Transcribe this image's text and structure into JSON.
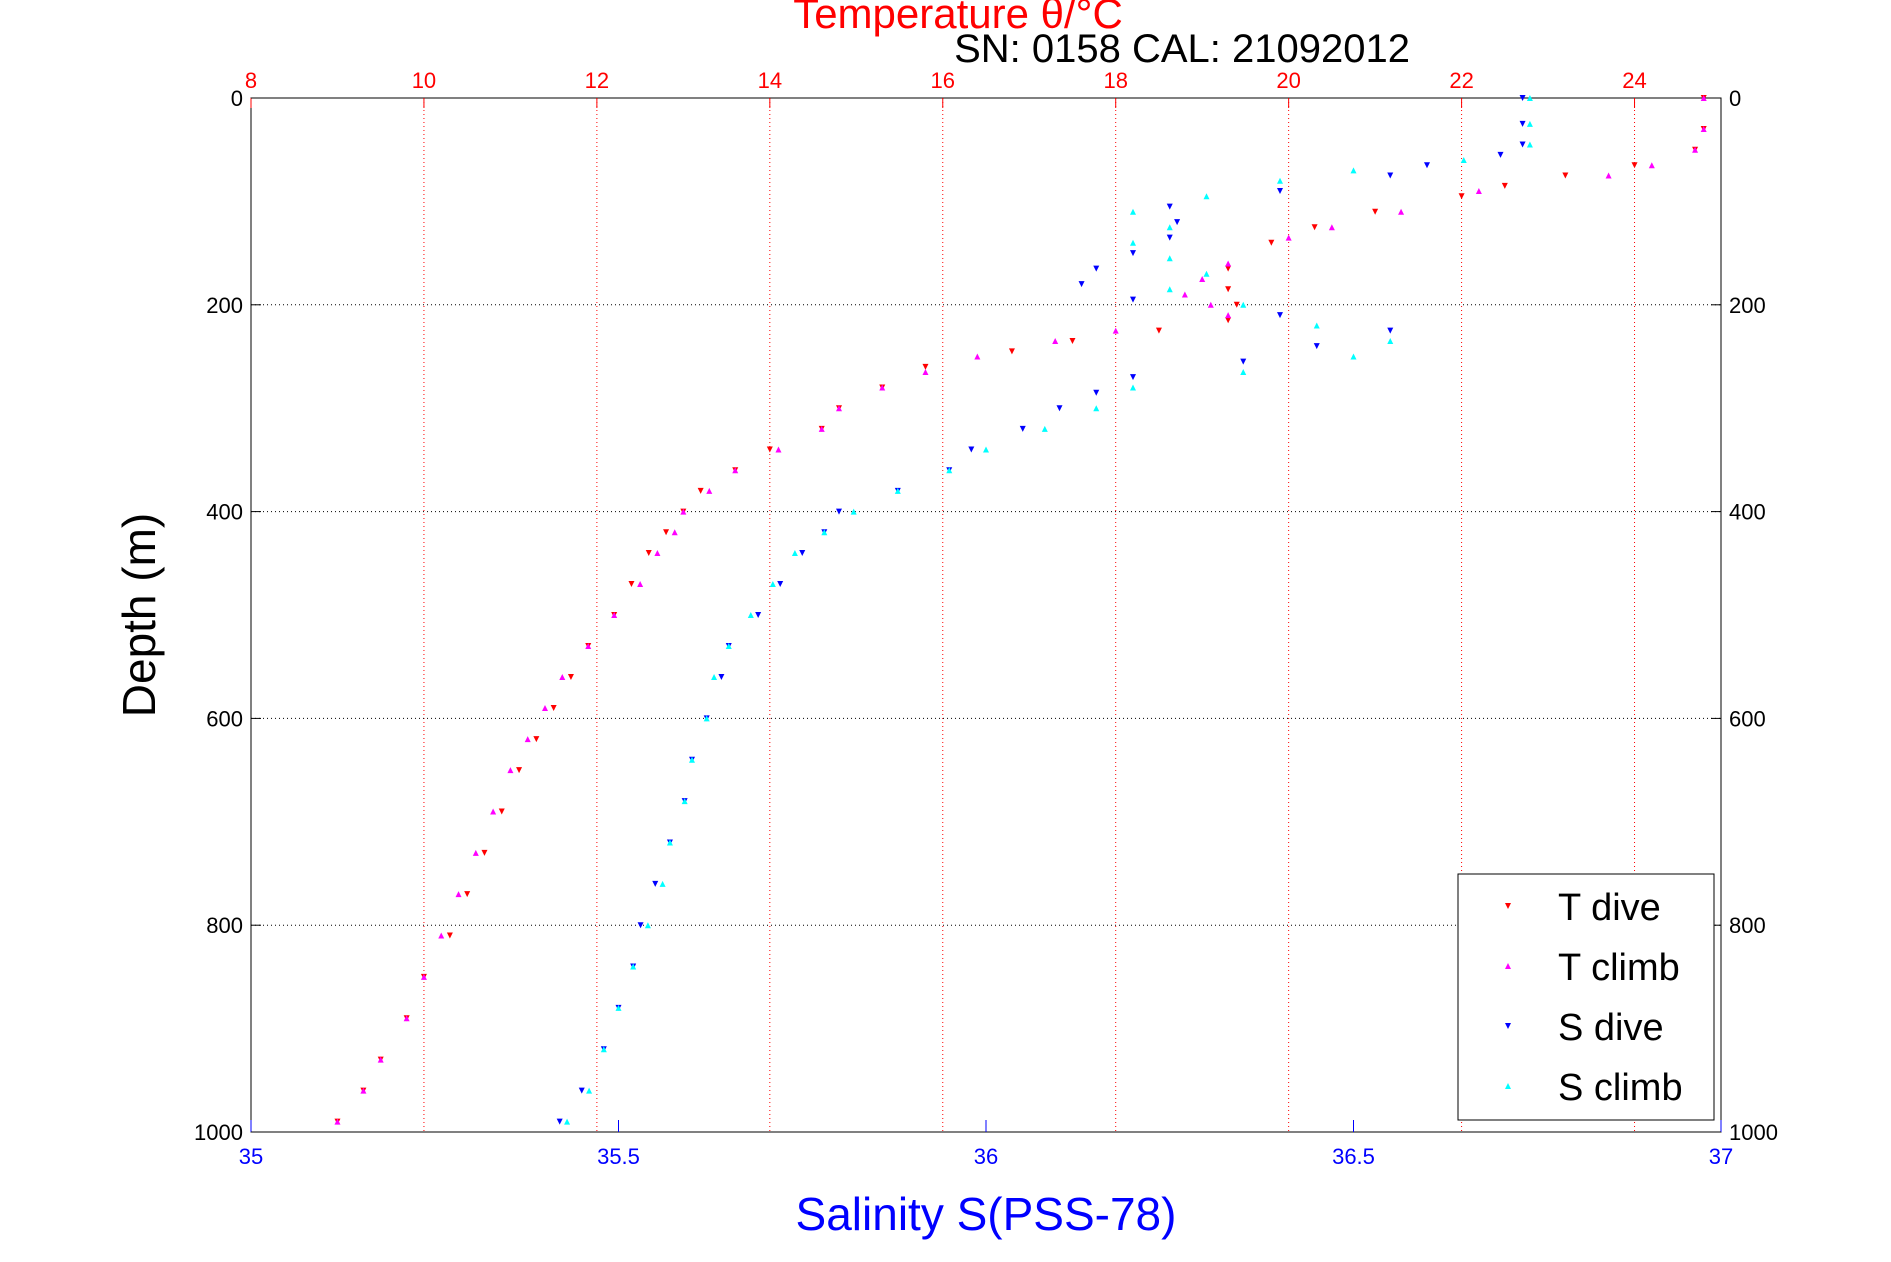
{
  "chart_data": {
    "type": "scatter",
    "title": "Temperature θ/°C",
    "subtitle": "SN: 0158  CAL: 21092012",
    "top_axis": {
      "label": "Temperature θ/°C",
      "range": [
        8,
        25
      ],
      "ticks": [
        "8",
        "10",
        "12",
        "14",
        "16",
        "18",
        "20",
        "22",
        "24"
      ],
      "color": "#ff0000"
    },
    "bottom_axis": {
      "label": "Salinity S(PSS-78)",
      "range": [
        35,
        37
      ],
      "ticks": [
        "35",
        "35.5",
        "36",
        "36.5",
        "37"
      ],
      "color": "#0000ff"
    },
    "y_axis": {
      "label": "Depth (m)",
      "range": [
        0,
        1000
      ],
      "reversed": true,
      "ticks": [
        "0",
        "200",
        "400",
        "600",
        "800",
        "1000"
      ]
    },
    "grid": true,
    "legend": {
      "placement": "bottom-right",
      "entries": [
        "T dive",
        "T climb",
        "S dive",
        "S climb"
      ]
    },
    "series": [
      {
        "name": "T dive",
        "axis": "temperature",
        "color": "#ff0000",
        "marker": "triangle-down",
        "points": [
          [
            24.8,
            0
          ],
          [
            24.8,
            30
          ],
          [
            24.7,
            50
          ],
          [
            24,
            65
          ],
          [
            23.2,
            75
          ],
          [
            22.5,
            85
          ],
          [
            22,
            95
          ],
          [
            21,
            110
          ],
          [
            20.3,
            125
          ],
          [
            19.8,
            140
          ],
          [
            19.3,
            165
          ],
          [
            19.3,
            185
          ],
          [
            19.4,
            200
          ],
          [
            19.3,
            215
          ],
          [
            18.5,
            225
          ],
          [
            17.5,
            235
          ],
          [
            16.8,
            245
          ],
          [
            15.8,
            260
          ],
          [
            15.3,
            280
          ],
          [
            14.8,
            300
          ],
          [
            14.6,
            320
          ],
          [
            14,
            340
          ],
          [
            13.6,
            360
          ],
          [
            13.2,
            380
          ],
          [
            13,
            400
          ],
          [
            12.8,
            420
          ],
          [
            12.6,
            440
          ],
          [
            12.4,
            470
          ],
          [
            12.2,
            500
          ],
          [
            11.9,
            530
          ],
          [
            11.7,
            560
          ],
          [
            11.5,
            590
          ],
          [
            11.3,
            620
          ],
          [
            11.1,
            650
          ],
          [
            10.9,
            690
          ],
          [
            10.7,
            730
          ],
          [
            10.5,
            770
          ],
          [
            10.3,
            810
          ],
          [
            10,
            850
          ],
          [
            9.8,
            890
          ],
          [
            9.5,
            930
          ],
          [
            9.3,
            960
          ],
          [
            9,
            990
          ]
        ]
      },
      {
        "name": "T climb",
        "axis": "temperature",
        "color": "#ff00ff",
        "marker": "triangle-up",
        "points": [
          [
            24.8,
            0
          ],
          [
            24.8,
            30
          ],
          [
            24.7,
            50
          ],
          [
            24.2,
            65
          ],
          [
            23.7,
            75
          ],
          [
            22.2,
            90
          ],
          [
            21.3,
            110
          ],
          [
            20.5,
            125
          ],
          [
            20,
            135
          ],
          [
            19.3,
            160
          ],
          [
            19,
            175
          ],
          [
            18.8,
            190
          ],
          [
            19.1,
            200
          ],
          [
            19.3,
            210
          ],
          [
            18,
            225
          ],
          [
            17.3,
            235
          ],
          [
            16.4,
            250
          ],
          [
            15.8,
            265
          ],
          [
            15.3,
            280
          ],
          [
            14.8,
            300
          ],
          [
            14.6,
            320
          ],
          [
            14.1,
            340
          ],
          [
            13.6,
            360
          ],
          [
            13.3,
            380
          ],
          [
            13,
            400
          ],
          [
            12.9,
            420
          ],
          [
            12.7,
            440
          ],
          [
            12.5,
            470
          ],
          [
            12.2,
            500
          ],
          [
            11.9,
            530
          ],
          [
            11.6,
            560
          ],
          [
            11.4,
            590
          ],
          [
            11.2,
            620
          ],
          [
            11,
            650
          ],
          [
            10.8,
            690
          ],
          [
            10.6,
            730
          ],
          [
            10.4,
            770
          ],
          [
            10.2,
            810
          ],
          [
            10,
            850
          ],
          [
            9.8,
            890
          ],
          [
            9.5,
            930
          ],
          [
            9.3,
            960
          ],
          [
            9,
            990
          ]
        ]
      },
      {
        "name": "S dive",
        "axis": "salinity",
        "color": "#0000ff",
        "marker": "triangle-down",
        "points": [
          [
            36.73,
            0
          ],
          [
            36.73,
            25
          ],
          [
            36.73,
            45
          ],
          [
            36.7,
            55
          ],
          [
            36.6,
            65
          ],
          [
            36.55,
            75
          ],
          [
            36.4,
            90
          ],
          [
            36.25,
            105
          ],
          [
            36.26,
            120
          ],
          [
            36.25,
            135
          ],
          [
            36.2,
            150
          ],
          [
            36.15,
            165
          ],
          [
            36.13,
            180
          ],
          [
            36.2,
            195
          ],
          [
            36.4,
            210
          ],
          [
            36.55,
            225
          ],
          [
            36.45,
            240
          ],
          [
            36.35,
            255
          ],
          [
            36.2,
            270
          ],
          [
            36.15,
            285
          ],
          [
            36.1,
            300
          ],
          [
            36.05,
            320
          ],
          [
            35.98,
            340
          ],
          [
            35.95,
            360
          ],
          [
            35.88,
            380
          ],
          [
            35.8,
            400
          ],
          [
            35.78,
            420
          ],
          [
            35.75,
            440
          ],
          [
            35.72,
            470
          ],
          [
            35.69,
            500
          ],
          [
            35.65,
            530
          ],
          [
            35.64,
            560
          ],
          [
            35.62,
            600
          ],
          [
            35.6,
            640
          ],
          [
            35.59,
            680
          ],
          [
            35.57,
            720
          ],
          [
            35.55,
            760
          ],
          [
            35.53,
            800
          ],
          [
            35.52,
            840
          ],
          [
            35.5,
            880
          ],
          [
            35.48,
            920
          ],
          [
            35.45,
            960
          ],
          [
            35.42,
            990
          ]
        ]
      },
      {
        "name": "S climb",
        "axis": "salinity",
        "color": "#00ffff",
        "marker": "triangle-up",
        "points": [
          [
            36.74,
            0
          ],
          [
            36.74,
            25
          ],
          [
            36.74,
            45
          ],
          [
            36.65,
            60
          ],
          [
            36.5,
            70
          ],
          [
            36.4,
            80
          ],
          [
            36.3,
            95
          ],
          [
            36.2,
            110
          ],
          [
            36.25,
            125
          ],
          [
            36.2,
            140
          ],
          [
            36.25,
            155
          ],
          [
            36.3,
            170
          ],
          [
            36.25,
            185
          ],
          [
            36.35,
            200
          ],
          [
            36.45,
            220
          ],
          [
            36.55,
            235
          ],
          [
            36.5,
            250
          ],
          [
            36.35,
            265
          ],
          [
            36.2,
            280
          ],
          [
            36.15,
            300
          ],
          [
            36.08,
            320
          ],
          [
            36.0,
            340
          ],
          [
            35.95,
            360
          ],
          [
            35.88,
            380
          ],
          [
            35.82,
            400
          ],
          [
            35.78,
            420
          ],
          [
            35.74,
            440
          ],
          [
            35.71,
            470
          ],
          [
            35.68,
            500
          ],
          [
            35.65,
            530
          ],
          [
            35.63,
            560
          ],
          [
            35.62,
            600
          ],
          [
            35.6,
            640
          ],
          [
            35.59,
            680
          ],
          [
            35.57,
            720
          ],
          [
            35.56,
            760
          ],
          [
            35.54,
            800
          ],
          [
            35.52,
            840
          ],
          [
            35.5,
            880
          ],
          [
            35.48,
            920
          ],
          [
            35.46,
            960
          ],
          [
            35.43,
            990
          ]
        ]
      }
    ]
  }
}
